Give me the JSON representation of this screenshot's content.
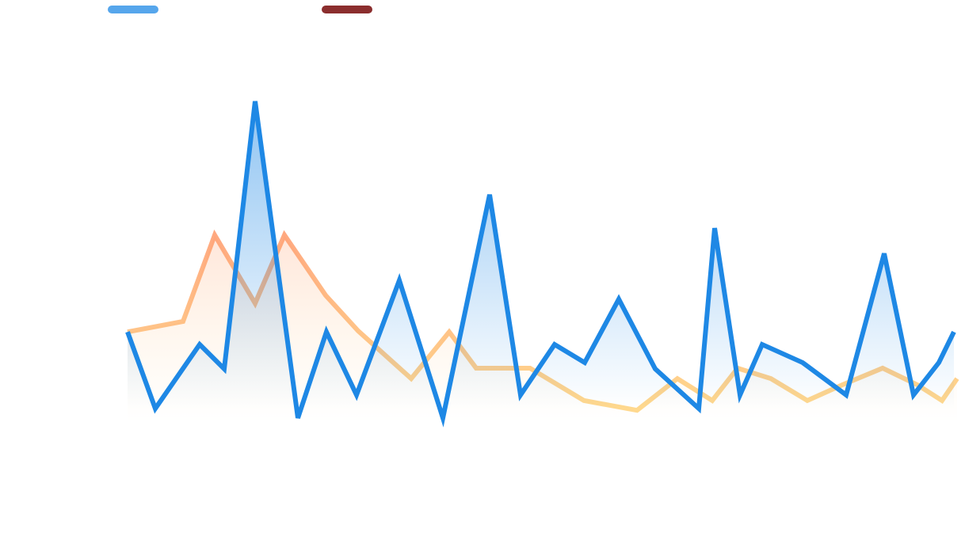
{
  "chart_data": {
    "type": "line",
    "xlim": [
      0,
      1047
    ],
    "ylim": [
      0,
      100
    ],
    "area_fill": true,
    "series": [
      {
        "color": "#1e88e5",
        "x": [
          0,
          35,
          91,
          122,
          161,
          215,
          251,
          289,
          343,
          398,
          457,
          496,
          539,
          577,
          620,
          666,
          721,
          741,
          773,
          801,
          852,
          907,
          955,
          992,
          1024,
          1043
        ],
        "values": [
          32,
          10,
          28.4,
          21.4,
          98.2,
          7.3,
          32,
          13.9,
          46.8,
          7.3,
          71.4,
          13.9,
          28.4,
          23.2,
          41.4,
          21.4,
          10,
          61.8,
          13.9,
          28.4,
          23.2,
          13.9,
          54.5,
          13.9,
          23.2,
          32
        ]
      },
      {
        "color": "#8b2e2e",
        "line_gradient": [
          "#ff9a6a",
          "#ffd27a"
        ],
        "x": [
          0,
          70,
          110,
          161,
          198,
          250,
          291,
          358,
          406,
          440,
          508,
          576,
          643,
          694,
          738,
          770,
          812,
          858,
          902,
          953,
          997,
          1028,
          1047
        ],
        "values": [
          32,
          35,
          59.8,
          40.2,
          59.8,
          42.5,
          32.3,
          18.6,
          32,
          21.6,
          21.6,
          12.3,
          9.5,
          18.6,
          12.3,
          21.6,
          18.6,
          12.3,
          16.8,
          21.6,
          16.8,
          12.3,
          18.6
        ]
      }
    ]
  }
}
